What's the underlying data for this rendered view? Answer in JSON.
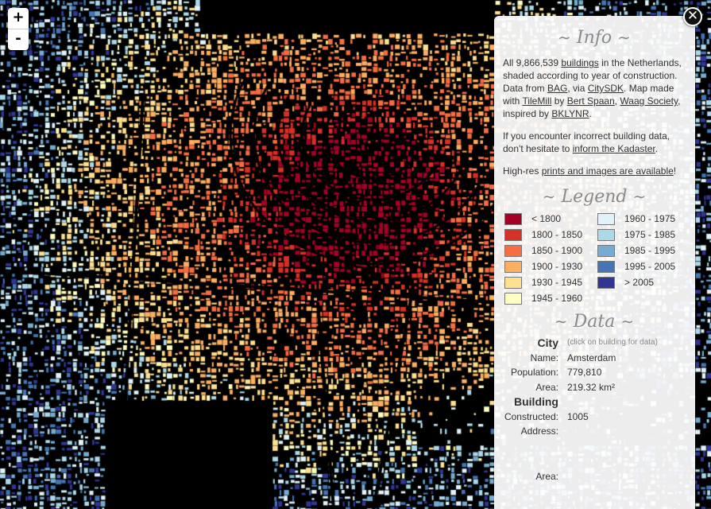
{
  "map": {
    "city": "Amsterdam",
    "style": "building footprints colored by construction year",
    "background": "#000000"
  },
  "zoom": {
    "in_label": "+",
    "out_label": "-"
  },
  "close_label": "✕",
  "info": {
    "heading": "Info",
    "p1": {
      "t1": "All 9,866,539 ",
      "link_buildings": "buildings",
      "t2": " in the Netherlands, shaded according to year of construction. Data from ",
      "link_bag": "BAG",
      "t3": ", via ",
      "link_citysdk": "CitySDK",
      "t4": ". Map made with ",
      "link_tilemill": "TileMill",
      "t5": " by ",
      "link_bert": "Bert Spaan",
      "t6": ", ",
      "link_waag": "Waag Society",
      "t7": ", inspired by ",
      "link_bklynr": "BKLYNR",
      "t8": "."
    },
    "p2": {
      "t1": "If you encounter incorrect building data, don't hesitate to ",
      "link_kadaster": "inform the Kadaster",
      "t2": "."
    },
    "p3": {
      "t1": "High-res ",
      "link_prints": "prints and images are available",
      "t2": "!"
    }
  },
  "legend": {
    "heading": "Legend",
    "items": [
      {
        "label": "< 1800",
        "color": "#a50026"
      },
      {
        "label": "1800 - 1850",
        "color": "#d73027"
      },
      {
        "label": "1850 - 1900",
        "color": "#f46d43"
      },
      {
        "label": "1900 - 1930",
        "color": "#fdae61"
      },
      {
        "label": "1930 - 1945",
        "color": "#fee090"
      },
      {
        "label": "1945 - 1960",
        "color": "#ffffbf"
      },
      {
        "label": "1960 - 1975",
        "color": "#e0f3f8"
      },
      {
        "label": "1975 - 1985",
        "color": "#abd9e9"
      },
      {
        "label": "1985 - 1995",
        "color": "#74add1"
      },
      {
        "label": "1995 - 2005",
        "color": "#4575b4"
      },
      {
        "label": "> 2005",
        "color": "#313695"
      }
    ]
  },
  "data": {
    "heading": "Data",
    "city_header": "City",
    "city_hint": "(click on building for data)",
    "name_label": "Name:",
    "name_value": "Amsterdam",
    "population_label": "Population:",
    "population_value": "779,810",
    "area_label": "Area:",
    "area_value": "219.32 km²",
    "building_header": "Building",
    "constructed_label": "Constructed:",
    "constructed_value": "1005",
    "address_label": "Address:",
    "address_value": "",
    "barea_label": "Area:",
    "barea_value": ""
  }
}
